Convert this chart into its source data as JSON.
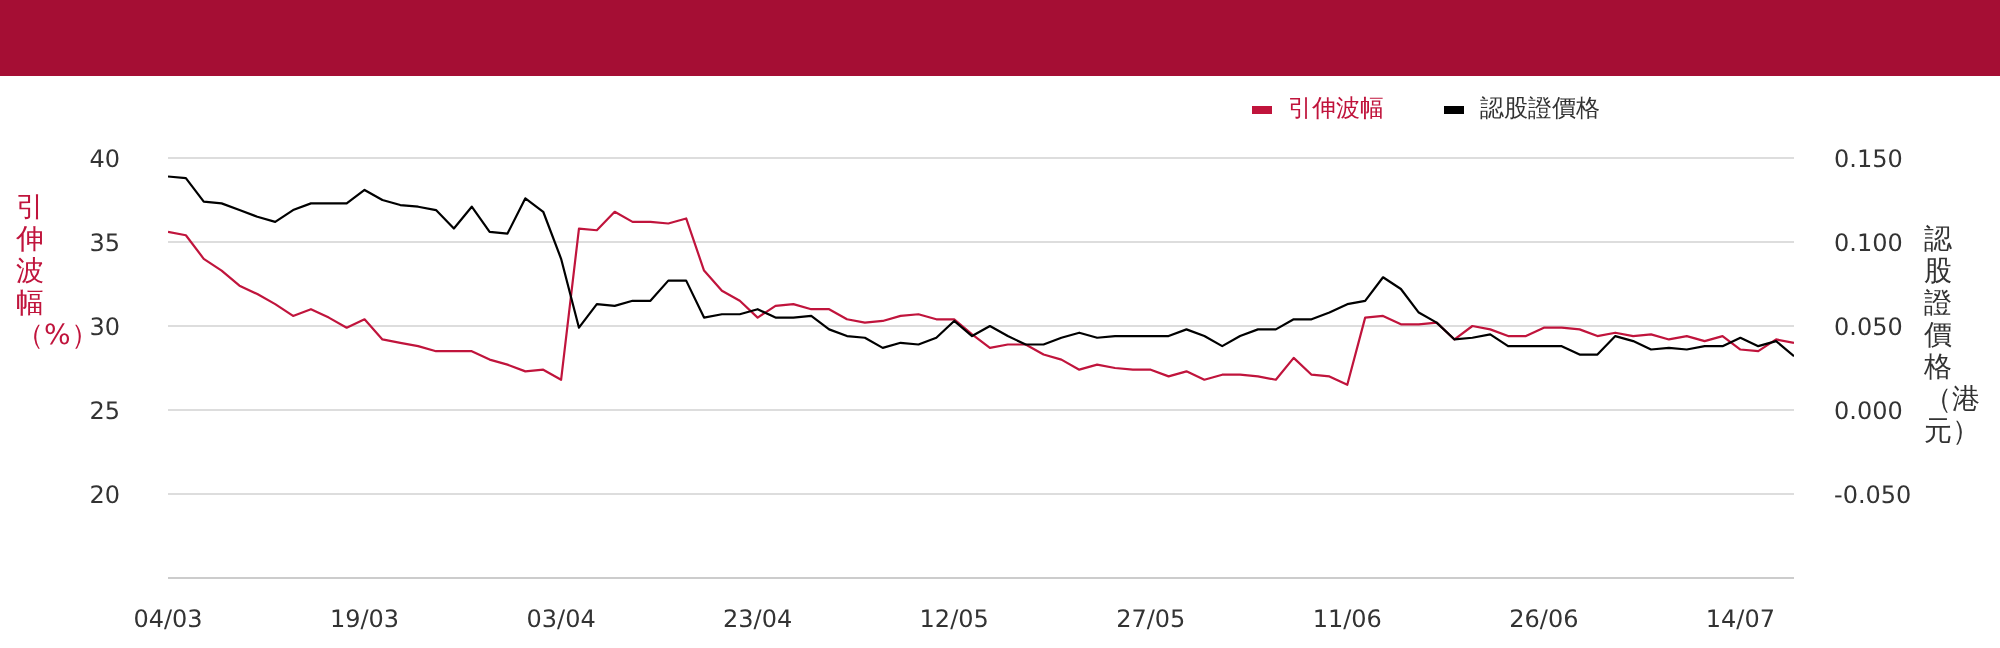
{
  "chart_data": {
    "type": "line",
    "categories": [
      "04/03",
      null,
      null,
      null,
      null,
      null,
      null,
      null,
      null,
      null,
      null,
      "19/03",
      null,
      null,
      null,
      null,
      null,
      null,
      null,
      null,
      null,
      null,
      "03/04",
      null,
      null,
      null,
      null,
      null,
      null,
      null,
      null,
      null,
      null,
      "23/04",
      null,
      null,
      null,
      null,
      null,
      null,
      null,
      null,
      null,
      null,
      "12/05",
      null,
      null,
      null,
      null,
      null,
      null,
      null,
      null,
      null,
      null,
      "27/05",
      null,
      null,
      null,
      null,
      null,
      null,
      null,
      null,
      null,
      null,
      "11/06",
      null,
      null,
      null,
      null,
      null,
      null,
      null,
      null,
      null,
      null,
      "26/06",
      null,
      null,
      null,
      null,
      null,
      null,
      null,
      null,
      null,
      null,
      "14/07",
      null,
      null,
      null
    ],
    "series": [
      {
        "name": "引伸波幅",
        "color": "#c0143c",
        "values": [
          35.6,
          35.4,
          34.0,
          33.3,
          32.4,
          31.9,
          31.3,
          30.6,
          31.0,
          30.5,
          29.9,
          30.4,
          29.2,
          29.0,
          28.8,
          28.5,
          28.5,
          28.5,
          28.0,
          27.7,
          27.3,
          27.4,
          26.8,
          35.8,
          35.7,
          36.8,
          36.2,
          36.2,
          36.1,
          36.4,
          33.3,
          32.1,
          31.5,
          30.5,
          31.2,
          31.3,
          31.0,
          31.0,
          30.4,
          30.2,
          30.3,
          30.6,
          30.7,
          30.4,
          30.4,
          29.5,
          28.7,
          28.9,
          28.9,
          28.3,
          28.0,
          27.4,
          27.7,
          27.5,
          27.4,
          27.4,
          27.0,
          27.3,
          26.8,
          27.1,
          27.1,
          27.0,
          26.8,
          28.1,
          27.1,
          27.0,
          26.5,
          30.5,
          30.6,
          30.1,
          30.1,
          30.2,
          29.2,
          30.0,
          29.8,
          29.4,
          29.4,
          29.9,
          29.9,
          29.8,
          29.4,
          29.6,
          29.4,
          29.5,
          29.2,
          29.4,
          29.1,
          29.4,
          28.6,
          28.5,
          29.2,
          29.0
        ]
      },
      {
        "name": "認股證價格",
        "color": "#000000",
        "axis": "y2",
        "values": [
          0.139,
          0.138,
          0.124,
          0.123,
          0.119,
          0.115,
          0.112,
          0.119,
          0.123,
          0.123,
          0.123,
          0.131,
          0.125,
          0.122,
          0.121,
          0.119,
          0.108,
          0.121,
          0.106,
          0.105,
          0.126,
          0.118,
          0.09,
          0.049,
          0.063,
          0.062,
          0.065,
          0.065,
          0.077,
          0.077,
          0.055,
          0.057,
          0.057,
          0.06,
          0.055,
          0.055,
          0.056,
          0.048,
          0.044,
          0.043,
          0.037,
          0.04,
          0.039,
          0.043,
          0.053,
          0.044,
          0.05,
          0.044,
          0.039,
          0.039,
          0.043,
          0.046,
          0.043,
          0.044,
          0.044,
          0.044,
          0.044,
          0.048,
          0.044,
          0.038,
          0.044,
          0.048,
          0.048,
          0.054,
          0.054,
          0.058,
          0.063,
          0.065,
          0.079,
          0.072,
          0.058,
          0.052,
          0.042,
          0.043,
          0.045,
          0.038,
          0.038,
          0.038,
          0.038,
          0.033,
          0.033,
          0.044,
          0.041,
          0.036,
          0.037,
          0.036,
          0.038,
          0.038,
          0.043,
          0.038,
          0.041,
          0.032
        ]
      }
    ],
    "ylabel": "引伸波幅（%）",
    "y2label": "認股證價格（港元）",
    "ylim": [
      15,
      40
    ],
    "yticks": [
      20,
      25,
      30,
      35,
      40
    ],
    "y2lim": [
      -0.1,
      0.15
    ],
    "y2ticks": [
      {
        "value": -0.05,
        "label": "-0.050"
      },
      {
        "value": 0,
        "label": "0.000"
      },
      {
        "value": 0.05,
        "label": "0.050"
      },
      {
        "value": 0.1,
        "label": "0.100"
      },
      {
        "value": 0.15,
        "label": "0.150"
      }
    ],
    "grid": "y",
    "legend": "top right",
    "marker": "none",
    "line_style": "solid"
  }
}
